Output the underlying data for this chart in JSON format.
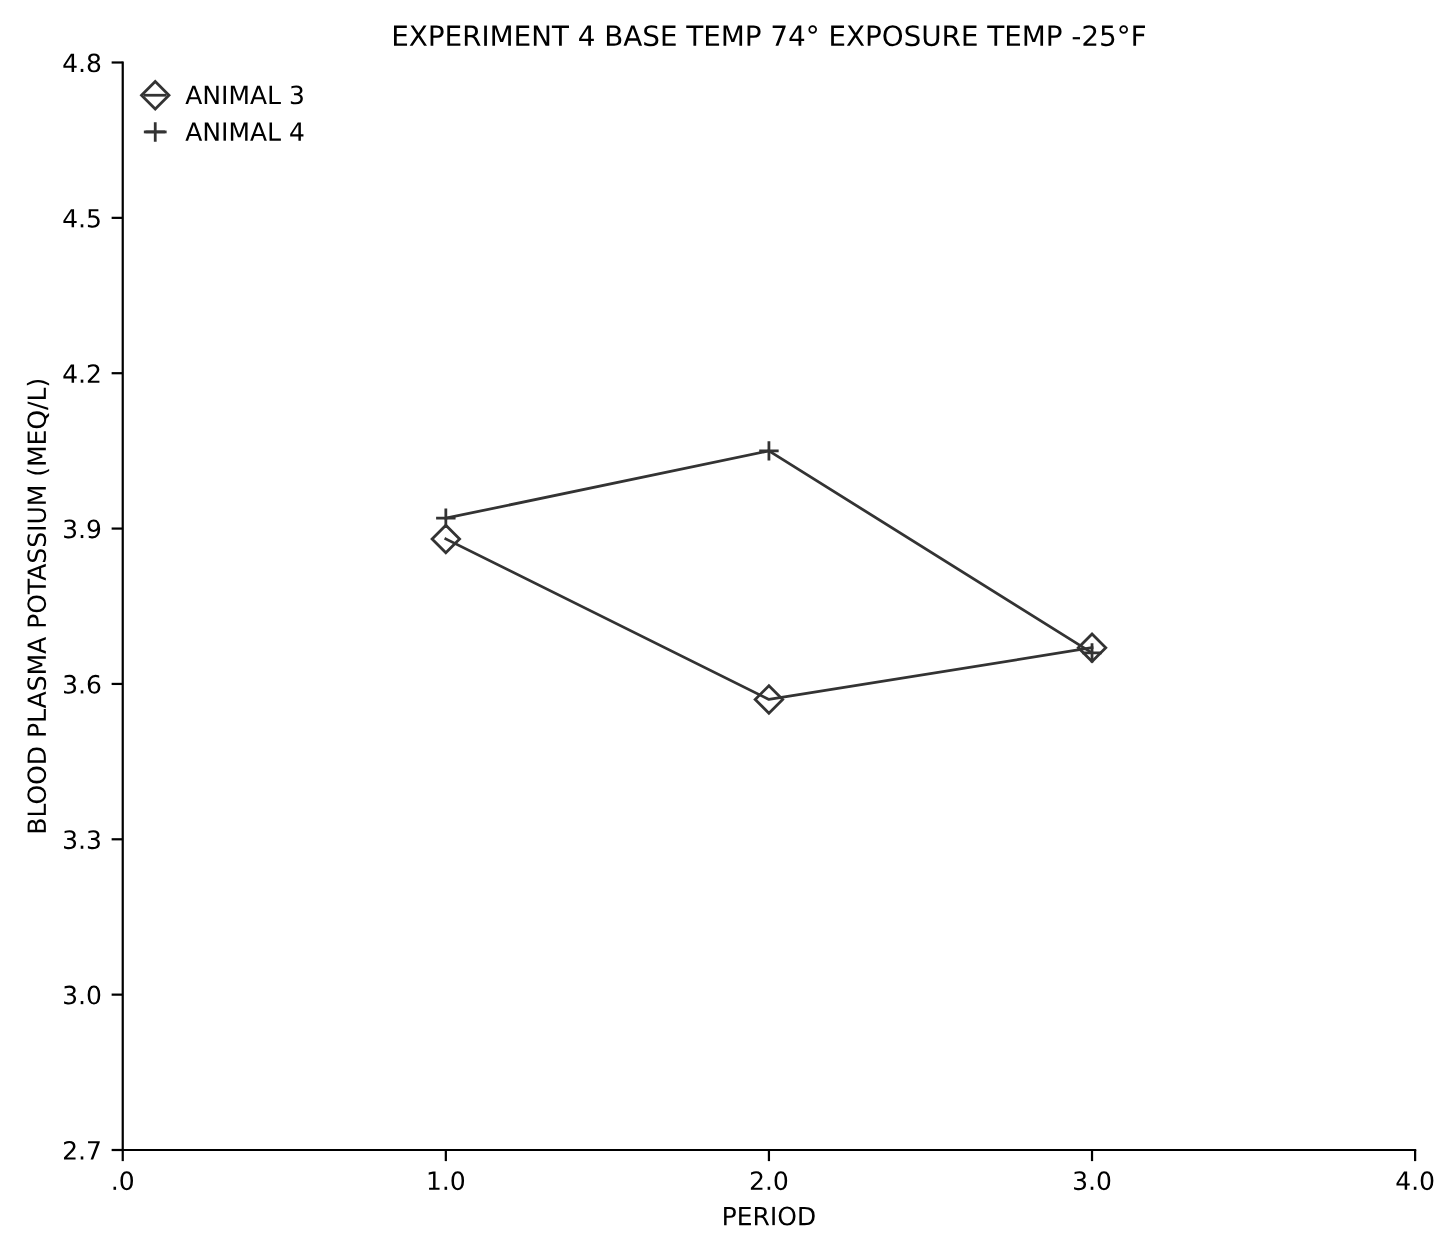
{
  "chart_data": {
    "type": "line",
    "title": "EXPERIMENT 4 BASE TEMP 74° EXPOSURE TEMP -25°F",
    "xlabel": "PERIOD",
    "ylabel": "BLOOD PLASMA POTASSIUM (MEQ/L)",
    "x": [
      1.0,
      2.0,
      3.0
    ],
    "series": [
      {
        "name": "ANIMAL 3",
        "color": "#333333",
        "marker": "diamond",
        "values": [
          3.88,
          3.57,
          3.67
        ]
      },
      {
        "name": "ANIMAL 4",
        "color": "#333333",
        "marker": "cross",
        "values": [
          3.92,
          4.05,
          3.66
        ]
      }
    ],
    "xlim": [
      0,
      4
    ],
    "xticks": [
      {
        "value": 0,
        "label": ".0"
      },
      {
        "value": 1,
        "label": "1.0"
      },
      {
        "value": 2,
        "label": "2.0"
      },
      {
        "value": 3,
        "label": "3.0"
      },
      {
        "value": 4,
        "label": "4.0"
      }
    ],
    "ylim": [
      2.7,
      4.8
    ],
    "yticks": [
      {
        "value": 2.7,
        "label": "2.7"
      },
      {
        "value": 3.0,
        "label": "3.0"
      },
      {
        "value": 3.3,
        "label": "3.3"
      },
      {
        "value": 3.6,
        "label": "3.6"
      },
      {
        "value": 3.9,
        "label": "3.9"
      },
      {
        "value": 4.2,
        "label": "4.2"
      },
      {
        "value": 4.5,
        "label": "4.5"
      },
      {
        "value": 4.8,
        "label": "4.8"
      }
    ],
    "grid": false,
    "legend": "top left",
    "line_style": "solid"
  }
}
